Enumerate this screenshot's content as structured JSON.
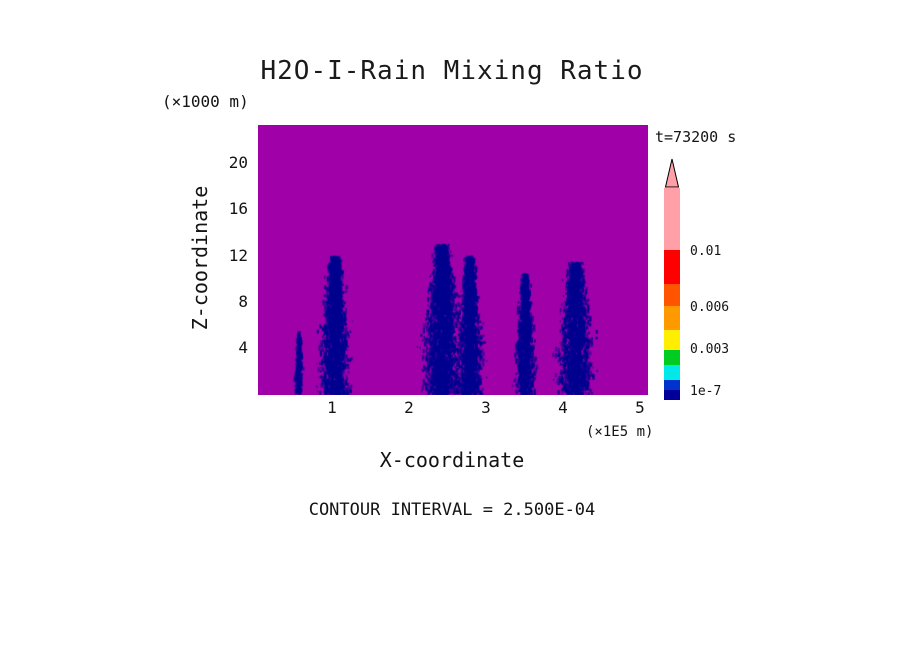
{
  "chart_data": {
    "type": "heatmap",
    "title": "H2O-I-Rain Mixing Ratio",
    "time_label": "t=73200 s",
    "xlabel": "X-coordinate",
    "ylabel": "Z-coordinate",
    "x_units": "(×1E5 m)",
    "y_units": "(×1000 m)",
    "contour_note": "CONTOUR INTERVAL = 2.500E-04",
    "x_ticks": [
      "1",
      "2",
      "3",
      "4",
      "5"
    ],
    "y_ticks": [
      "20",
      "16",
      "12",
      "8",
      "4"
    ],
    "x_range_1e5_m": [
      0,
      5.1
    ],
    "y_range_km": [
      0,
      23.2
    ],
    "grid": false,
    "legend_position": "right-colorbar",
    "field_color": "#A000A8",
    "rain_color": "#000090",
    "rain_shafts": [
      {
        "x": 0.56,
        "half_width": 0.05,
        "top_km": 5.5,
        "density": 0.12
      },
      {
        "x": 1.03,
        "half_width": 0.2,
        "top_km": 12.0,
        "density": 1.0
      },
      {
        "x": 2.42,
        "half_width": 0.26,
        "top_km": 13.0,
        "density": 1.25
      },
      {
        "x": 2.78,
        "half_width": 0.17,
        "top_km": 12.0,
        "density": 0.9
      },
      {
        "x": 3.5,
        "half_width": 0.13,
        "top_km": 10.5,
        "density": 0.6
      },
      {
        "x": 4.15,
        "half_width": 0.25,
        "top_km": 11.5,
        "density": 0.95
      }
    ],
    "colorbar": {
      "arrow_color": "#FFA0A8",
      "segments_top_to_bottom": [
        {
          "color": "#FFA0A8",
          "height": 62
        },
        {
          "color": "#FF0000",
          "height": 34
        },
        {
          "color": "#FF5500",
          "height": 22
        },
        {
          "color": "#FF9900",
          "height": 24
        },
        {
          "color": "#FFEE00",
          "height": 20
        },
        {
          "color": "#00CC22",
          "height": 15
        },
        {
          "color": "#00E8E8",
          "height": 15
        },
        {
          "color": "#0033CC",
          "height": 10
        },
        {
          "color": "#000099",
          "height": 10
        }
      ],
      "labels": [
        {
          "text": "0.01"
        },
        {
          "text": "0.006"
        },
        {
          "text": "0.003"
        },
        {
          "text": "1e-7"
        }
      ]
    }
  }
}
